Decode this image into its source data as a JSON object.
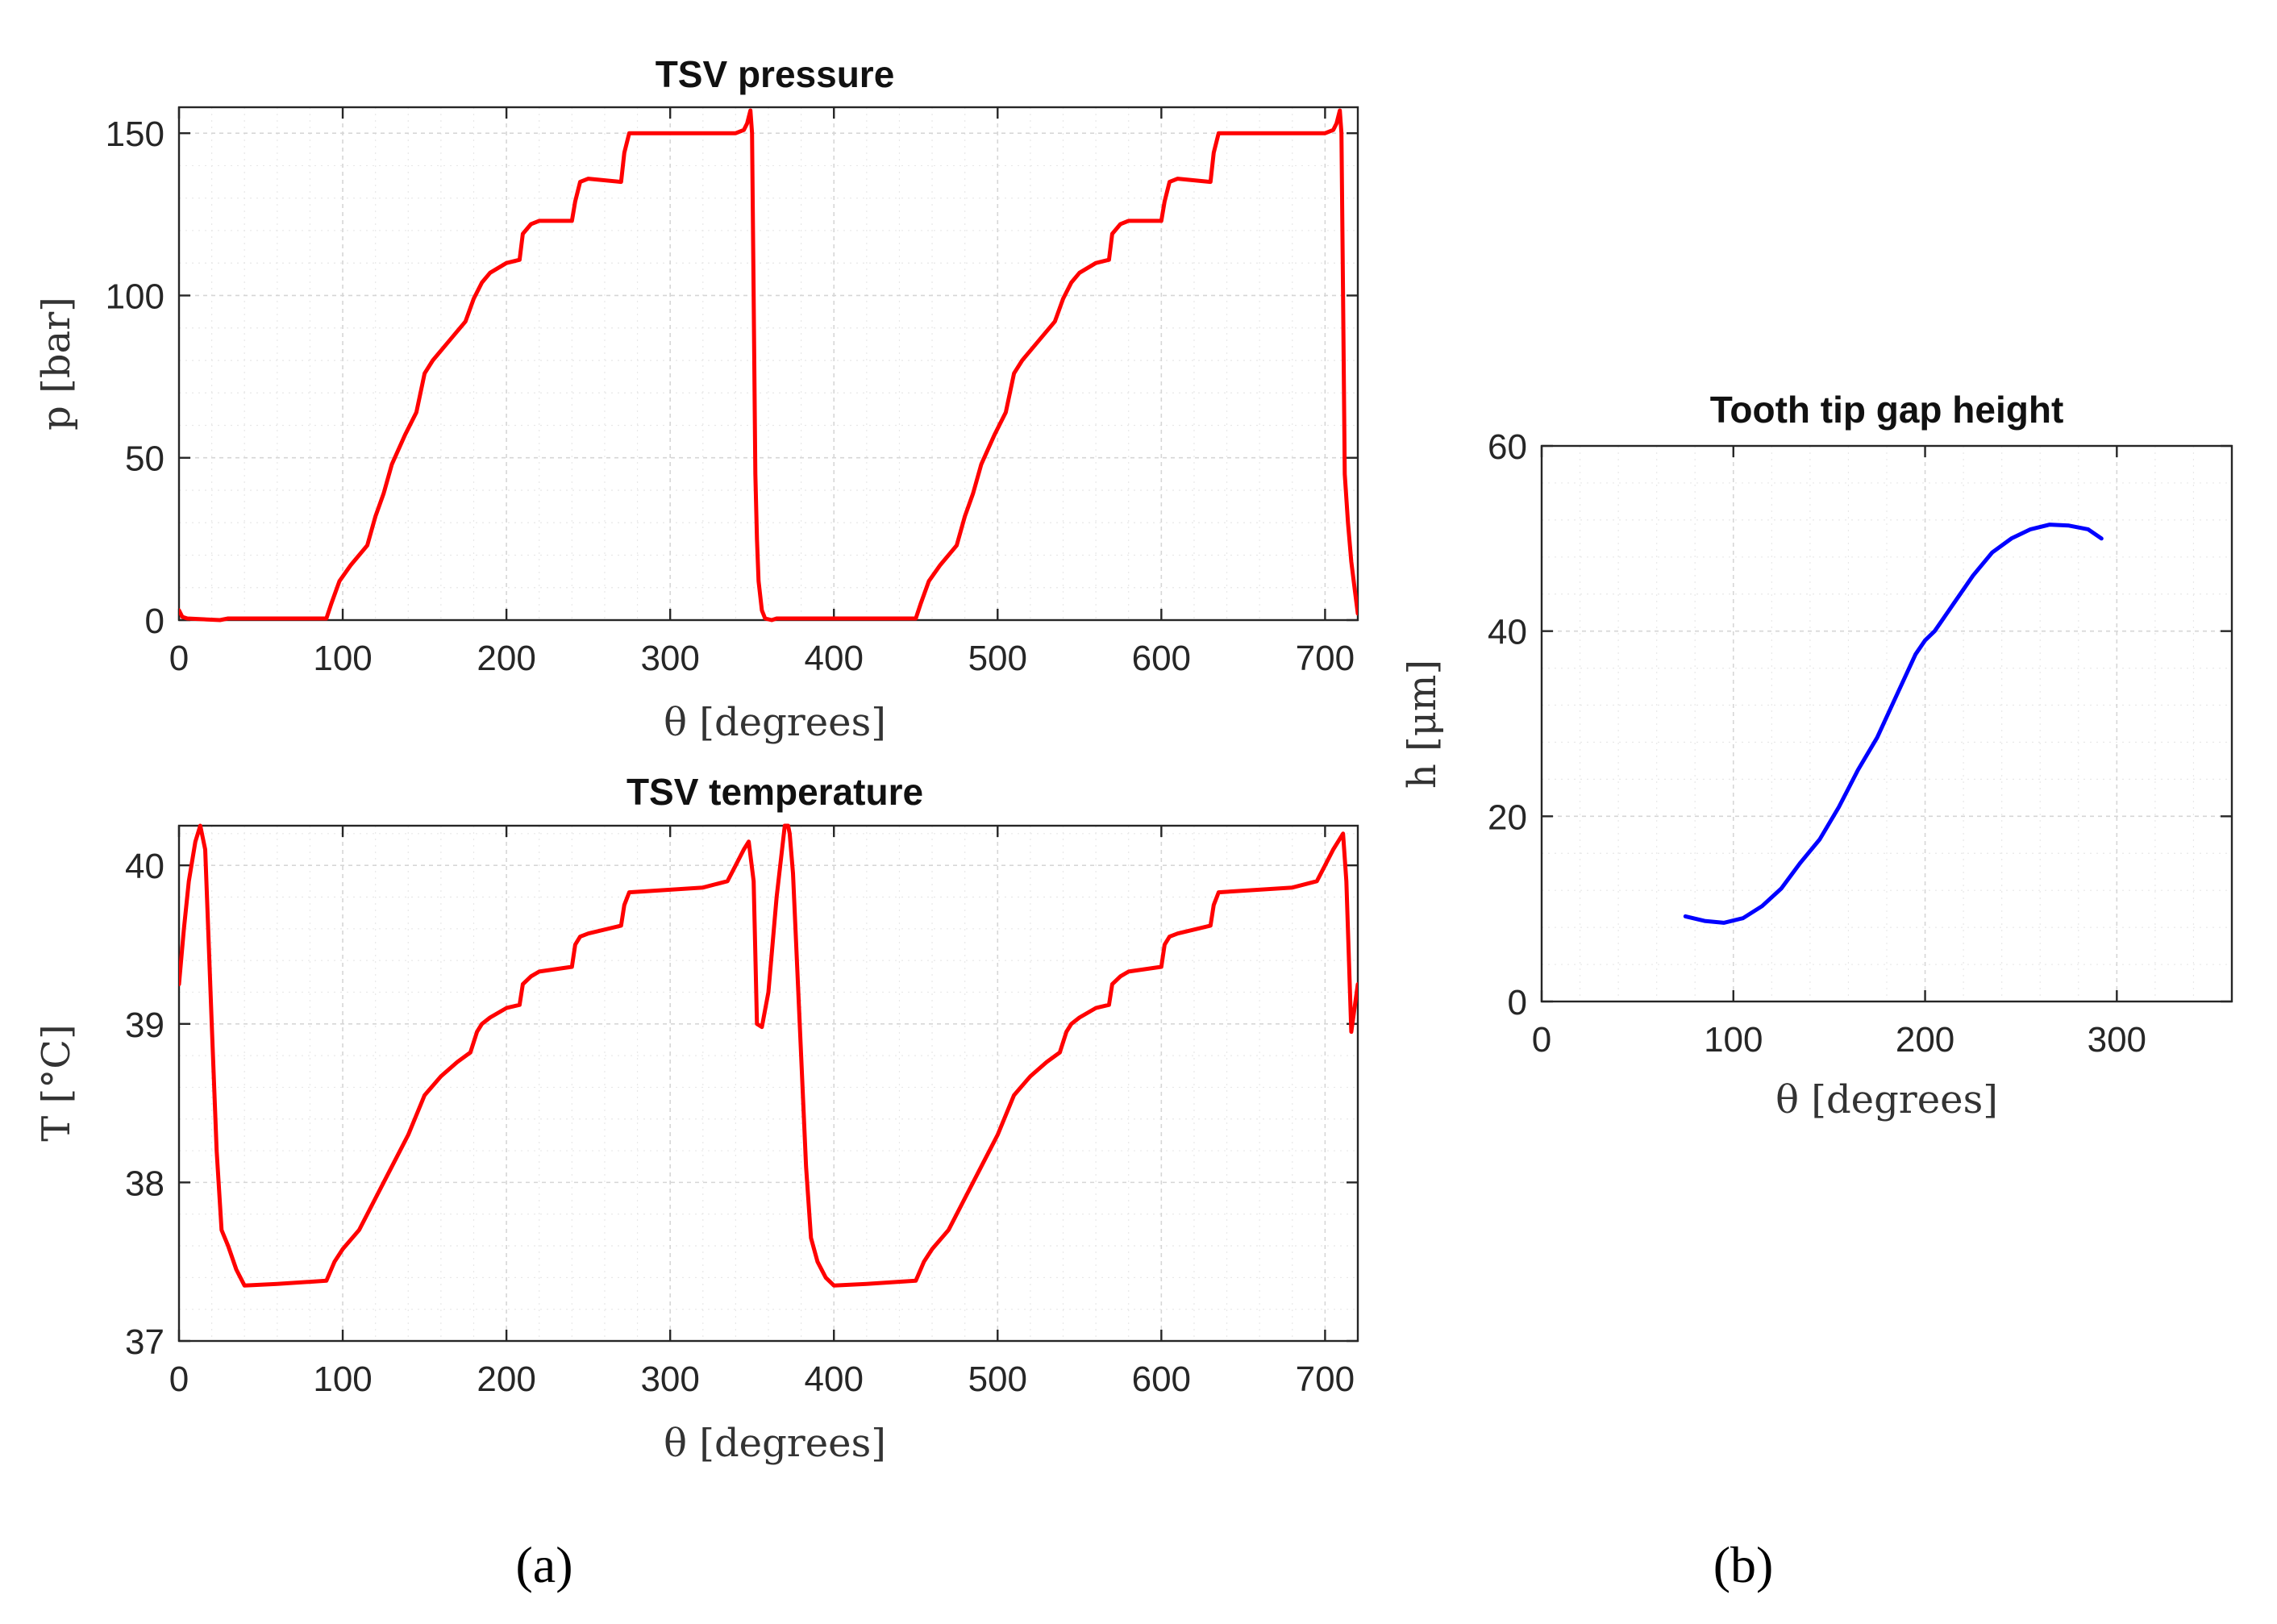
{
  "panel_labels": [
    "(a)",
    "(b)"
  ],
  "chart_data": [
    {
      "id": "pressure",
      "type": "line",
      "title": "TSV pressure",
      "xlabel": "θ [degrees]",
      "ylabel": "p [bar]",
      "xlim": [
        0,
        720
      ],
      "ylim": [
        0,
        158
      ],
      "xticks": [
        0,
        100,
        200,
        300,
        400,
        500,
        600,
        700
      ],
      "yticks": [
        0,
        50,
        100,
        150
      ],
      "xticklabels": [
        "0",
        "100",
        "200",
        "300",
        "400",
        "500",
        "600",
        "700"
      ],
      "yticklabels": [
        "0",
        "50",
        "100",
        "150"
      ],
      "grid": true,
      "color": "#ff0000",
      "series": [
        {
          "name": "p",
          "x": [
            0,
            2,
            5,
            25,
            30,
            60,
            90,
            93,
            98,
            105,
            115,
            120,
            125,
            130,
            138,
            145,
            150,
            155,
            165,
            175,
            180,
            185,
            190,
            200,
            208,
            210,
            215,
            220,
            240,
            242,
            245,
            250,
            270,
            272,
            275,
            340,
            345,
            347,
            349,
            350,
            351,
            352,
            353,
            354,
            356,
            358,
            362,
            365,
            368,
            380,
            400,
            430,
            450,
            453,
            458,
            465,
            475,
            480,
            485,
            490,
            498,
            505,
            510,
            515,
            525,
            535,
            540,
            545,
            550,
            560,
            568,
            570,
            575,
            580,
            600,
            602,
            605,
            610,
            630,
            632,
            635,
            700,
            705,
            707,
            709,
            710,
            711,
            712,
            714,
            716,
            718,
            720
          ],
          "y": [
            3,
            1,
            0.5,
            0,
            0.5,
            0.5,
            0.5,
            5,
            12,
            17,
            23,
            32,
            39,
            48,
            57,
            64,
            76,
            80,
            86,
            92,
            99,
            104,
            107,
            110,
            111,
            119,
            122,
            123,
            123,
            129,
            135,
            136,
            135,
            144,
            150,
            150,
            151,
            153,
            157,
            150,
            100,
            45,
            25,
            12,
            3,
            0.5,
            0,
            0.5,
            0.5,
            0.5,
            0.5,
            0.5,
            0.5,
            5,
            12,
            17,
            23,
            32,
            39,
            48,
            57,
            64,
            76,
            80,
            86,
            92,
            99,
            104,
            107,
            110,
            111,
            119,
            122,
            123,
            123,
            129,
            135,
            136,
            135,
            144,
            150,
            150,
            151,
            153,
            157,
            150,
            100,
            45,
            30,
            18,
            10,
            2
          ]
        }
      ]
    },
    {
      "id": "temperature",
      "type": "line",
      "title": "TSV temperature",
      "xlabel": "θ [degrees]",
      "ylabel": "T [°C]",
      "xlim": [
        0,
        720
      ],
      "ylim": [
        37,
        40.25
      ],
      "xticks": [
        0,
        100,
        200,
        300,
        400,
        500,
        600,
        700
      ],
      "yticks": [
        37,
        38,
        39,
        40
      ],
      "xticklabels": [
        "0",
        "100",
        "200",
        "300",
        "400",
        "500",
        "600",
        "700"
      ],
      "yticklabels": [
        "37",
        "38",
        "39",
        "40"
      ],
      "grid": true,
      "color": "#ff0000",
      "series": [
        {
          "name": "T",
          "x": [
            0,
            3,
            6,
            10,
            13,
            16,
            20,
            23,
            26,
            30,
            35,
            40,
            60,
            90,
            95,
            100,
            110,
            120,
            130,
            140,
            150,
            160,
            170,
            178,
            182,
            185,
            190,
            200,
            208,
            210,
            215,
            220,
            240,
            242,
            245,
            250,
            270,
            272,
            275,
            320,
            335,
            340,
            345,
            348,
            351,
            353,
            356,
            360,
            365,
            370,
            372,
            373,
            375,
            380,
            383,
            386,
            390,
            395,
            400,
            420,
            450,
            455,
            460,
            470,
            480,
            490,
            500,
            510,
            520,
            530,
            538,
            542,
            545,
            550,
            560,
            568,
            570,
            575,
            580,
            600,
            602,
            605,
            610,
            630,
            632,
            635,
            680,
            695,
            700,
            705,
            708,
            711,
            713,
            716,
            720
          ],
          "y": [
            39.25,
            39.6,
            39.9,
            40.15,
            40.25,
            40.1,
            39.0,
            38.2,
            37.7,
            37.6,
            37.45,
            37.35,
            37.36,
            37.38,
            37.5,
            37.58,
            37.7,
            37.9,
            38.1,
            38.3,
            38.55,
            38.67,
            38.76,
            38.82,
            38.95,
            39.0,
            39.04,
            39.1,
            39.12,
            39.25,
            39.3,
            39.33,
            39.36,
            39.5,
            39.55,
            39.57,
            39.62,
            39.75,
            39.83,
            39.86,
            39.9,
            40.0,
            40.1,
            40.15,
            39.9,
            39.0,
            38.98,
            39.2,
            39.8,
            40.25,
            40.25,
            40.2,
            39.95,
            38.8,
            38.1,
            37.65,
            37.5,
            37.4,
            37.35,
            37.36,
            37.38,
            37.5,
            37.58,
            37.7,
            37.9,
            38.1,
            38.3,
            38.55,
            38.67,
            38.76,
            38.82,
            38.95,
            39.0,
            39.04,
            39.1,
            39.12,
            39.25,
            39.3,
            39.33,
            39.36,
            39.5,
            39.55,
            39.57,
            39.62,
            39.75,
            39.83,
            39.86,
            39.9,
            40.0,
            40.1,
            40.15,
            40.2,
            39.9,
            38.95,
            39.25
          ]
        }
      ]
    },
    {
      "id": "gap",
      "type": "line",
      "title": "Tooth tip gap height",
      "xlabel": "θ [degrees]",
      "ylabel": "h [μm]",
      "xlim": [
        0,
        360
      ],
      "ylim": [
        0,
        60
      ],
      "xticks": [
        0,
        100,
        200,
        300
      ],
      "yticks": [
        0,
        20,
        40,
        60
      ],
      "xticklabels": [
        "0",
        "100",
        "200",
        "300"
      ],
      "yticklabels": [
        "0",
        "20",
        "40",
        "60"
      ],
      "grid": true,
      "color": "#0000ff",
      "series": [
        {
          "name": "h",
          "x": [
            75,
            85,
            95,
            105,
            115,
            125,
            135,
            145,
            155,
            165,
            175,
            185,
            195,
            200,
            205,
            215,
            225,
            235,
            245,
            255,
            265,
            275,
            285,
            292
          ],
          "y": [
            9.2,
            8.7,
            8.5,
            9.0,
            10.3,
            12.2,
            15.0,
            17.5,
            21.0,
            25.0,
            28.5,
            33.0,
            37.5,
            39.0,
            40.0,
            43.0,
            46.0,
            48.5,
            50.0,
            51.0,
            51.5,
            51.4,
            51.0,
            50.0
          ]
        }
      ]
    }
  ]
}
